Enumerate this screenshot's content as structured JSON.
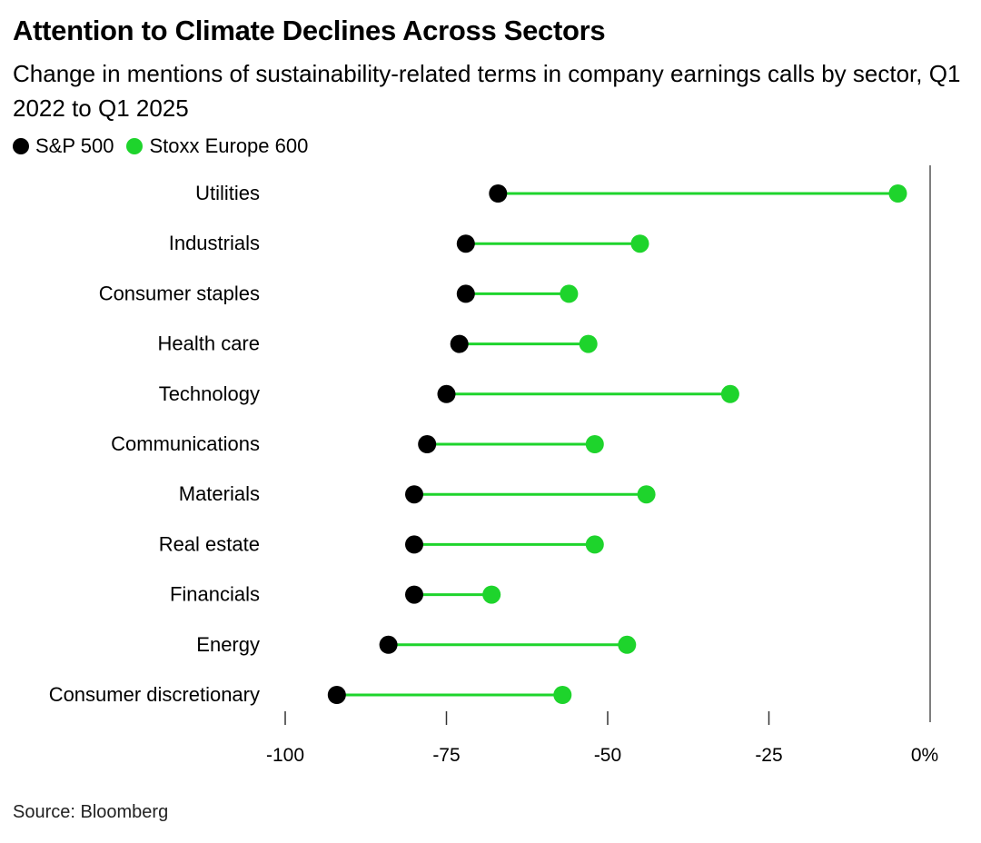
{
  "chart_data": {
    "type": "dumbbell",
    "title": "Attention to Climate Declines Across Sectors",
    "subtitle": "Change in mentions of sustainability-related terms in company earnings calls by sector, Q1 2022 to Q1 2025",
    "categories": [
      "Utilities",
      "Industrials",
      "Consumer staples",
      "Health care",
      "Technology",
      "Communications",
      "Materials",
      "Real estate",
      "Financials",
      "Energy",
      "Consumer discretionary"
    ],
    "series": [
      {
        "name": "S&P 500",
        "color": "#000000",
        "values": [
          -67,
          -72,
          -72,
          -73,
          -75,
          -78,
          -80,
          -80,
          -80,
          -84,
          -92
        ]
      },
      {
        "name": "Stoxx Europe 600",
        "color": "#1ed42c",
        "values": [
          -5,
          -45,
          -56,
          -53,
          -31,
          -52,
          -44,
          -52,
          -68,
          -47,
          -57
        ]
      }
    ],
    "connector_color": "#1ed42c",
    "x_ticks": [
      {
        "value": -100,
        "label": "-100"
      },
      {
        "value": -75,
        "label": "-75"
      },
      {
        "value": -50,
        "label": "-50"
      },
      {
        "value": -25,
        "label": "-25"
      },
      {
        "value": 0,
        "label": "0%"
      }
    ],
    "xlim": [
      -100,
      0
    ],
    "xlabel": "",
    "ylabel": "",
    "zero_line": true,
    "grid": false,
    "legend_position": "top-left",
    "source": "Source: Bloomberg"
  }
}
